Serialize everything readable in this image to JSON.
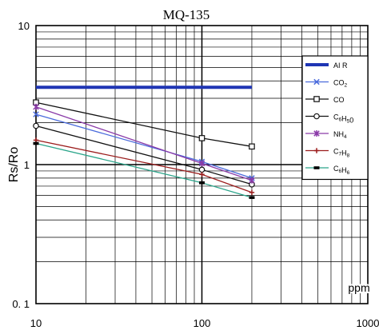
{
  "chart_data": {
    "type": "line",
    "title": "MQ-135",
    "ylabel": "Rs/Ro",
    "xlabel_unit": "ppm",
    "x_scale": "log",
    "y_scale": "log",
    "xlim": [
      10,
      1000
    ],
    "ylim": [
      0.1,
      10
    ],
    "grid": true,
    "legend_position": "right",
    "x_tick_labels": [
      {
        "value": 10,
        "label": "10"
      },
      {
        "value": 100,
        "label": "100"
      },
      {
        "value": 1000,
        "label": "1000"
      }
    ],
    "y_tick_labels": [
      {
        "value": 0.1,
        "label": "0. 1"
      },
      {
        "value": 1,
        "label": "1"
      },
      {
        "value": 10,
        "label": "10"
      }
    ],
    "series": [
      {
        "name": "AI R",
        "label_parts": [
          [
            "AI R",
            ""
          ]
        ],
        "color": "#1f35b4",
        "marker": "none",
        "width": 4,
        "x": [
          10,
          200
        ],
        "y": [
          3.6,
          3.6
        ]
      },
      {
        "name": "CO2",
        "label_parts": [
          [
            "CO",
            ""
          ],
          [
            "2",
            "sub"
          ]
        ],
        "color": "#4a6bdc",
        "marker": "x",
        "width": 1.3,
        "x": [
          10,
          100,
          200
        ],
        "y": [
          2.3,
          1.05,
          0.8
        ]
      },
      {
        "name": "CO",
        "label_parts": [
          [
            "CO",
            ""
          ]
        ],
        "color": "#111111",
        "marker": "square",
        "width": 1.3,
        "x": [
          10,
          100,
          200
        ],
        "y": [
          2.8,
          1.55,
          1.35
        ]
      },
      {
        "name": "C6H5O",
        "label_parts": [
          [
            "C",
            ""
          ],
          [
            "6",
            "sub"
          ],
          [
            "H",
            ""
          ],
          [
            "5",
            "sub"
          ],
          [
            "0",
            ""
          ]
        ],
        "color": "#111111",
        "marker": "circle",
        "width": 1.3,
        "x": [
          10,
          100,
          200
        ],
        "y": [
          1.9,
          0.92,
          0.72
        ]
      },
      {
        "name": "NH4",
        "label_parts": [
          [
            "NH",
            ""
          ],
          [
            "4",
            "sub"
          ]
        ],
        "color": "#8a3aa8",
        "marker": "star",
        "width": 1.3,
        "x": [
          10,
          100,
          200
        ],
        "y": [
          2.6,
          1.02,
          0.77
        ]
      },
      {
        "name": "C7H8",
        "label_parts": [
          [
            "C",
            ""
          ],
          [
            "7",
            "sub"
          ],
          [
            "H",
            ""
          ],
          [
            "8",
            "sub"
          ]
        ],
        "color": "#9b1c1c",
        "marker": "plus",
        "width": 1.3,
        "x": [
          10,
          100,
          200
        ],
        "y": [
          1.5,
          0.85,
          0.63
        ]
      },
      {
        "name": "C6H6",
        "label_parts": [
          [
            "C",
            ""
          ],
          [
            "6",
            "sub"
          ],
          [
            "H",
            ""
          ],
          [
            "6",
            "sub"
          ]
        ],
        "color": "#2aa58a",
        "marker": "bar",
        "width": 1.3,
        "x": [
          10,
          100,
          200
        ],
        "y": [
          1.42,
          0.74,
          0.58
        ]
      }
    ]
  }
}
